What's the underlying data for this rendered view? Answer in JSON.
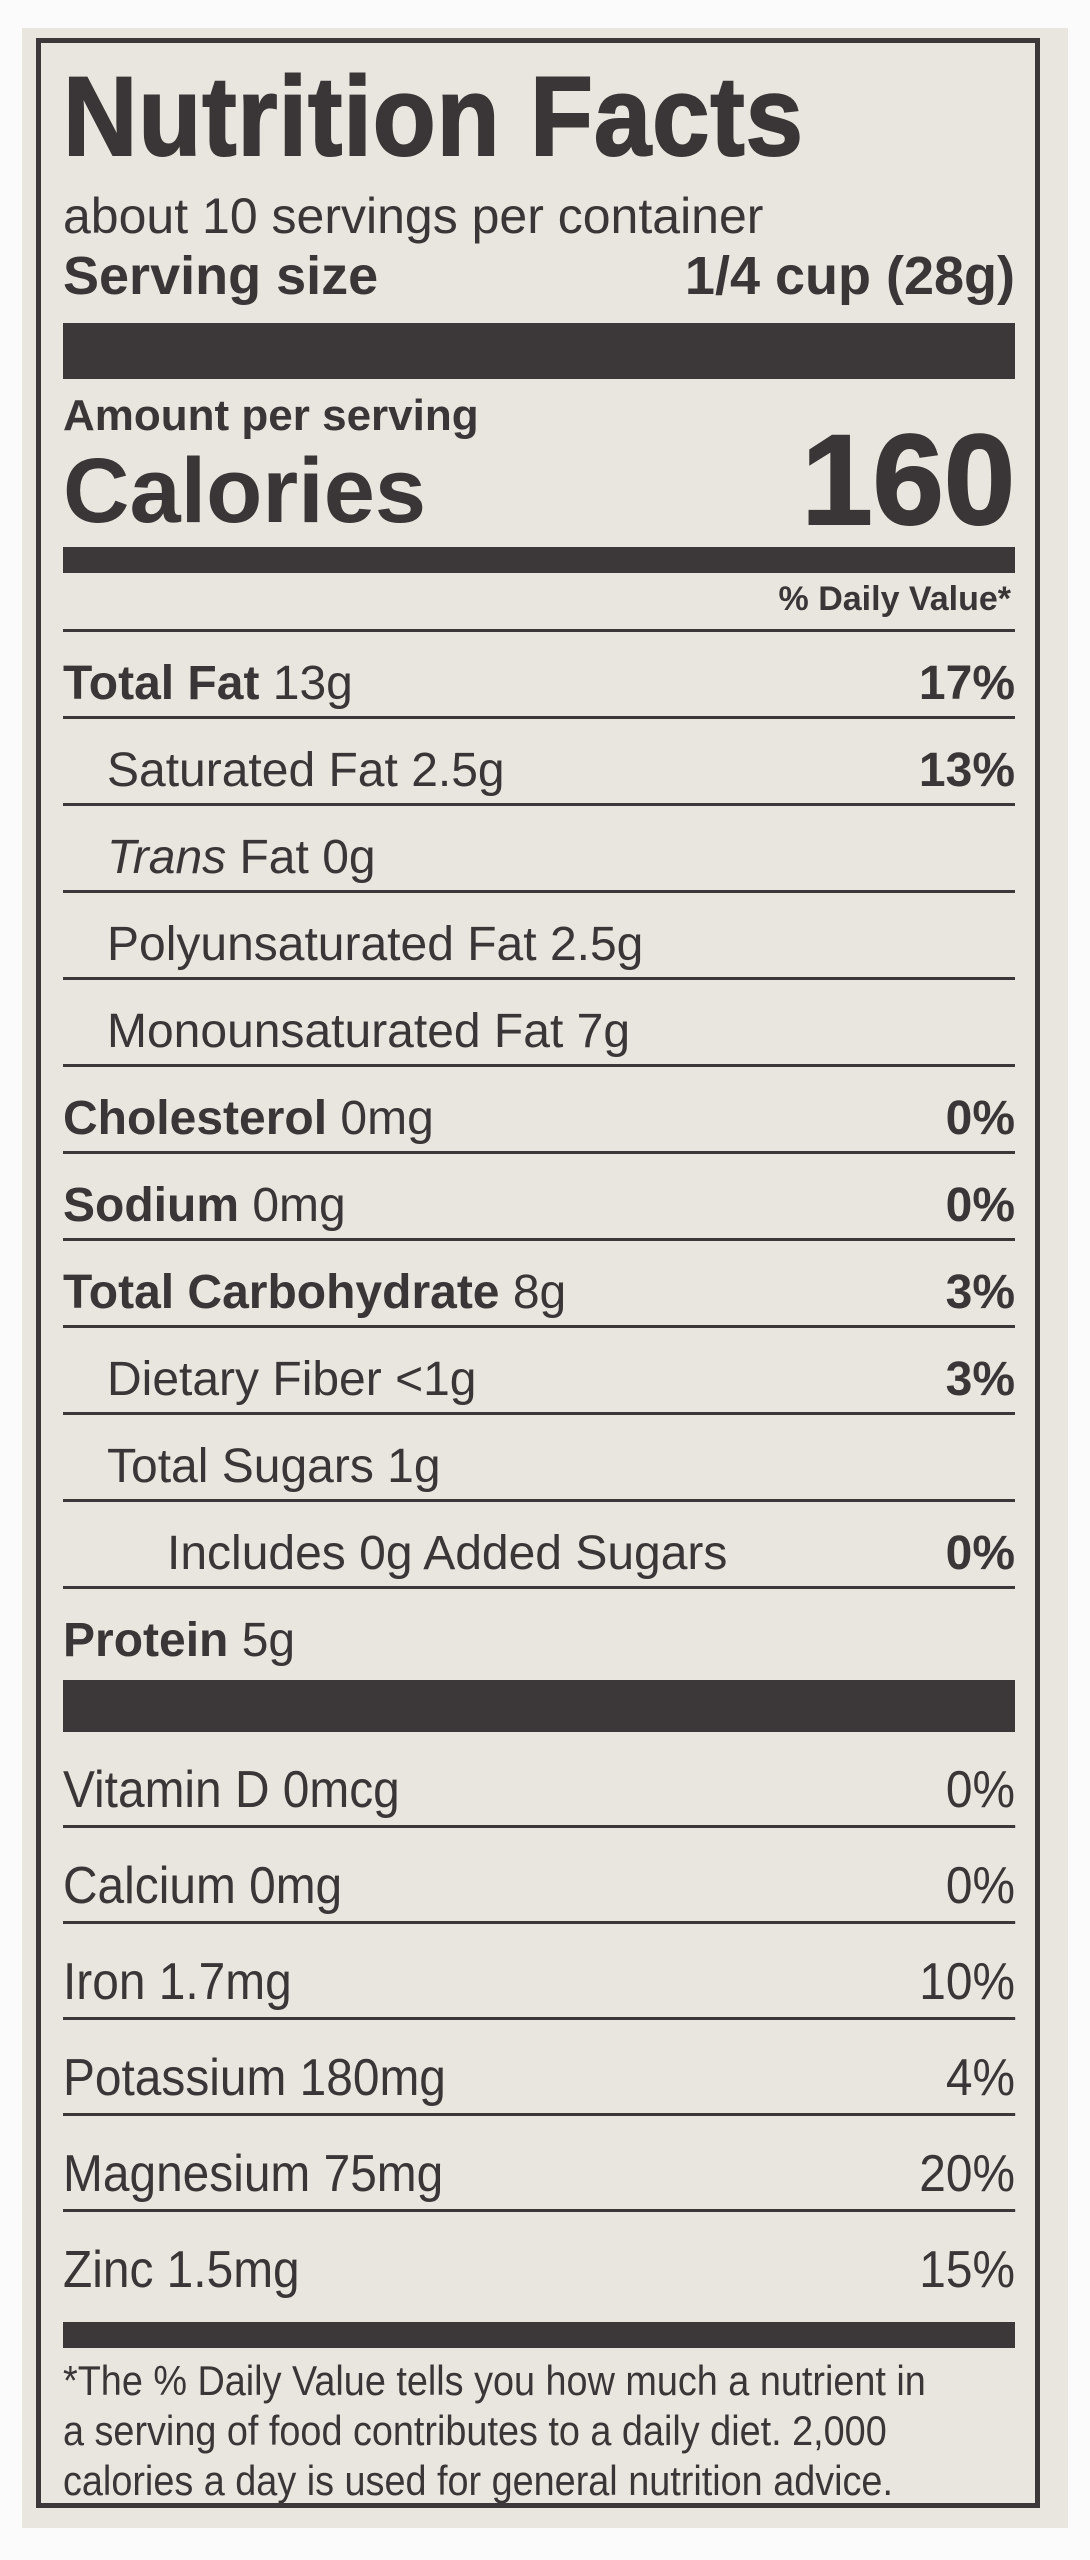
{
  "title": "Nutrition Facts",
  "servings_per_container": "about 10 servings per container",
  "serving_size": {
    "label": "Serving size",
    "value": "1/4 cup (28g)"
  },
  "amount_per_serving": "Amount per serving",
  "calories": {
    "label": "Calories",
    "value": "160"
  },
  "daily_value_header": "% Daily Value*",
  "nutrients": [
    {
      "name": "Total Fat",
      "amount": "13g",
      "dv": "17%",
      "bold": true,
      "indent": 0
    },
    {
      "name": "Saturated Fat",
      "amount": "2.5g",
      "dv": "13%",
      "bold": false,
      "indent": 1
    },
    {
      "name": "Trans",
      "name_suffix": "Fat",
      "amount": "0g",
      "dv": "",
      "bold": false,
      "indent": 1
    },
    {
      "name": "Polyunsaturated Fat",
      "amount": "2.5g",
      "dv": "",
      "bold": false,
      "indent": 1
    },
    {
      "name": "Monounsaturated Fat",
      "amount": "7g",
      "dv": "",
      "bold": false,
      "indent": 1
    },
    {
      "name": "Cholesterol",
      "amount": "0mg",
      "dv": "0%",
      "bold": true,
      "indent": 0
    },
    {
      "name": "Sodium",
      "amount": "0mg",
      "dv": "0%",
      "bold": true,
      "indent": 0
    },
    {
      "name": "Total Carbohydrate",
      "amount": "8g",
      "dv": "3%",
      "bold": true,
      "indent": 0
    },
    {
      "name": "Dietary Fiber",
      "amount": "<1g",
      "dv": "3%",
      "bold": false,
      "indent": 1
    },
    {
      "name": "Total Sugars",
      "amount": "1g",
      "dv": "",
      "bold": false,
      "indent": 1
    },
    {
      "name": "Includes 0g Added Sugars",
      "amount": "",
      "dv": "0%",
      "bold": false,
      "indent": 2
    },
    {
      "name": "Protein",
      "amount": "5g",
      "dv": "",
      "bold": true,
      "indent": 0
    }
  ],
  "vitamins": [
    {
      "name": "Vitamin D",
      "amount": "0mcg",
      "dv": "0%"
    },
    {
      "name": "Calcium",
      "amount": "0mg",
      "dv": "0%"
    },
    {
      "name": "Iron",
      "amount": "1.7mg",
      "dv": "10%"
    },
    {
      "name": "Potassium",
      "amount": "180mg",
      "dv": "4%"
    },
    {
      "name": "Magnesium",
      "amount": "75mg",
      "dv": "20%"
    },
    {
      "name": "Zinc",
      "amount": "1.5mg",
      "dv": "15%"
    }
  ],
  "footnote": "*The % Daily Value tells you how much a nutrient in\n a serving of food contributes to a daily diet. 2,000\n calories a day is used for general nutrition advice."
}
